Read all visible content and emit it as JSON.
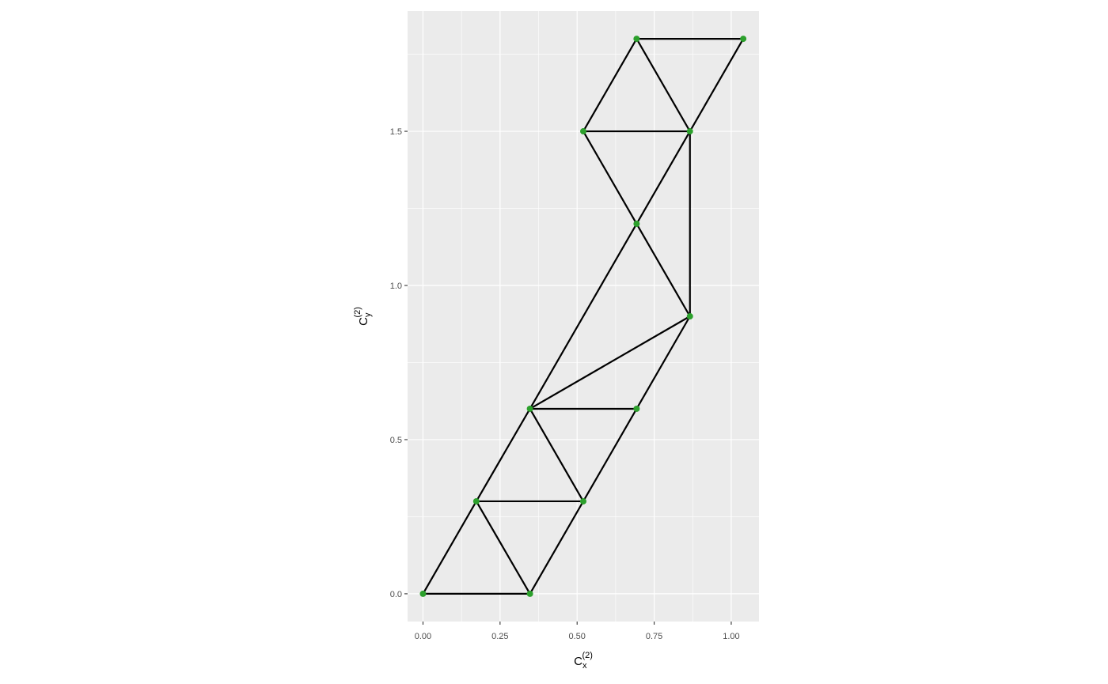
{
  "chart_data": {
    "type": "scatter",
    "title": "",
    "xlabel": {
      "base": "C",
      "subscript": "x",
      "superscript": "(2)"
    },
    "ylabel": {
      "base": "C",
      "subscript": "y",
      "superscript": "(2)"
    },
    "xlim": [
      -0.05,
      1.09
    ],
    "ylim": [
      -0.09,
      1.89
    ],
    "xticks": [
      0.0,
      0.25,
      0.5,
      0.75,
      1.0
    ],
    "xtick_labels": [
      "0.00",
      "0.25",
      "0.50",
      "0.75",
      "1.00"
    ],
    "yticks": [
      0.0,
      0.5,
      1.0,
      1.5
    ],
    "ytick_labels": [
      "0.0",
      "0.5",
      "1.0",
      "1.5"
    ],
    "grid": true,
    "background": "#ebebeb",
    "grid_color": "#ffffff",
    "point_color": "#2ca02c",
    "line_color": "#000000",
    "points": [
      {
        "x": 0.0,
        "y": 0.0
      },
      {
        "x": 0.347,
        "y": 0.0
      },
      {
        "x": 0.173,
        "y": 0.3
      },
      {
        "x": 0.52,
        "y": 0.3
      },
      {
        "x": 0.347,
        "y": 0.6
      },
      {
        "x": 0.693,
        "y": 0.6
      },
      {
        "x": 0.866,
        "y": 0.9
      },
      {
        "x": 0.693,
        "y": 1.2
      },
      {
        "x": 0.52,
        "y": 1.5
      },
      {
        "x": 0.866,
        "y": 1.5
      },
      {
        "x": 0.693,
        "y": 1.8
      },
      {
        "x": 1.039,
        "y": 1.8
      }
    ],
    "segments": [
      [
        0,
        1
      ],
      [
        0,
        2
      ],
      [
        1,
        2
      ],
      [
        1,
        3
      ],
      [
        2,
        3
      ],
      [
        2,
        4
      ],
      [
        3,
        4
      ],
      [
        3,
        5
      ],
      [
        4,
        5
      ],
      [
        4,
        6
      ],
      [
        4,
        7
      ],
      [
        5,
        6
      ],
      [
        6,
        7
      ],
      [
        6,
        9
      ],
      [
        7,
        8
      ],
      [
        7,
        9
      ],
      [
        8,
        9
      ],
      [
        8,
        10
      ],
      [
        9,
        10
      ],
      [
        9,
        11
      ],
      [
        10,
        11
      ]
    ]
  }
}
